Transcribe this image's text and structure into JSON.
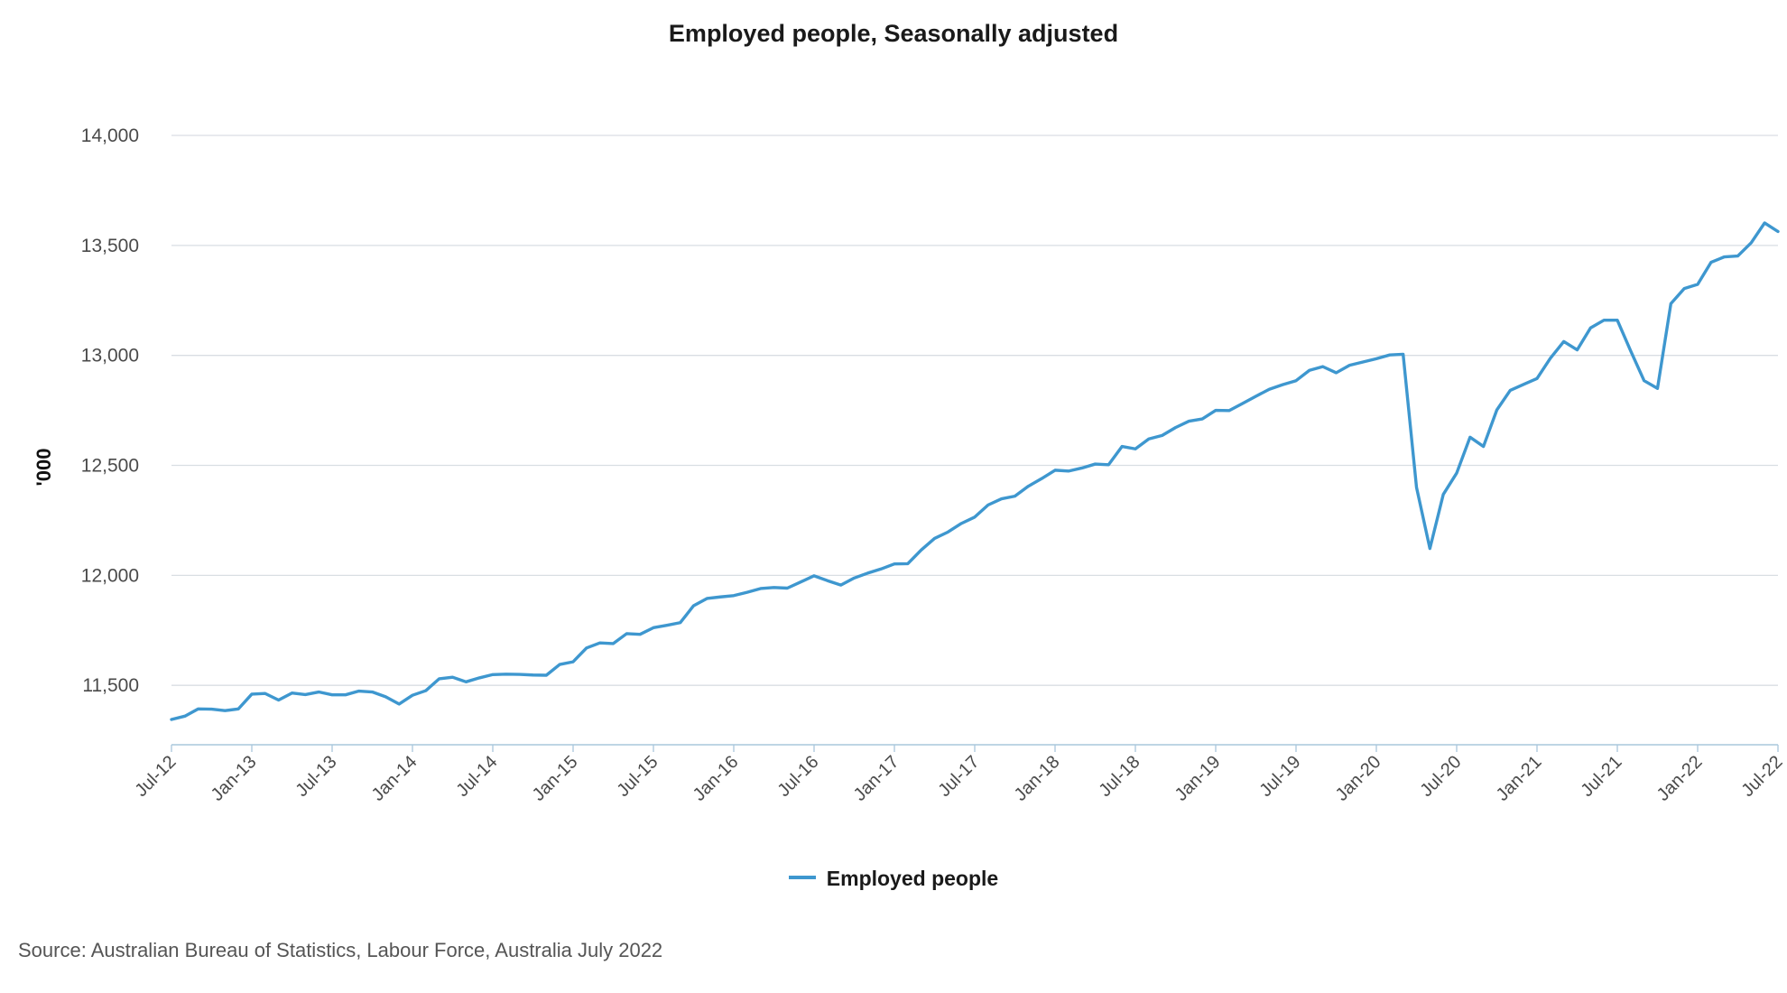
{
  "chart_data": {
    "type": "line",
    "title": "Employed people, Seasonally adjusted",
    "ylabel": "'000",
    "xlabel": "",
    "ylim": [
      11230,
      14000
    ],
    "yticks": [
      11500,
      12000,
      12500,
      13000,
      13500,
      14000
    ],
    "ytick_labels": [
      "11,500",
      "12,000",
      "12,500",
      "13,000",
      "13,500",
      "14,000"
    ],
    "xtick_labels": [
      "Jul-12",
      "Jan-13",
      "Jul-13",
      "Jan-14",
      "Jul-14",
      "Jan-15",
      "Jul-15",
      "Jan-16",
      "Jul-16",
      "Jan-17",
      "Jul-17",
      "Jan-18",
      "Jul-18",
      "Jan-19",
      "Jul-19",
      "Jan-20",
      "Jul-20",
      "Jan-21",
      "Jul-21",
      "Jan-22",
      "Jul-22"
    ],
    "x_start": "Jul-12",
    "x_end": "Jul-22",
    "grid": true,
    "legend_position": "bottom-center",
    "series": [
      {
        "name": "Employed people",
        "color": "#3e97cf",
        "values": [
          11345,
          11360,
          11393,
          11392,
          11385,
          11393,
          11460,
          11463,
          11433,
          11465,
          11458,
          11470,
          11457,
          11457,
          11474,
          11470,
          11448,
          11415,
          11455,
          11476,
          11530,
          11537,
          11516,
          11534,
          11549,
          11551,
          11550,
          11547,
          11546,
          11595,
          11607,
          11670,
          11693,
          11690,
          11735,
          11732,
          11762,
          11773,
          11785,
          11862,
          11895,
          11902,
          11908,
          11923,
          11940,
          11945,
          11942,
          11970,
          11998,
          11976,
          11956,
          11988,
          12010,
          12029,
          12052,
          12053,
          12115,
          12168,
          12197,
          12236,
          12265,
          12320,
          12348,
          12360,
          12405,
          12440,
          12478,
          12474,
          12488,
          12506,
          12503,
          12586,
          12575,
          12620,
          12636,
          12672,
          12701,
          12711,
          12750,
          12749,
          12781,
          12814,
          12846,
          12867,
          12885,
          12932,
          12949,
          12921,
          12955,
          12970,
          12985,
          13002,
          13005,
          12400,
          12122,
          12368,
          12465,
          12628,
          12586,
          12752,
          12841,
          12868,
          12895,
          12987,
          13063,
          13025,
          13125,
          13160,
          13160,
          13020,
          12885,
          12850,
          13235,
          13304,
          13323,
          13423,
          13448,
          13452,
          13512,
          13602,
          13563
        ]
      }
    ]
  },
  "legend": {
    "label": "Employed people"
  },
  "source": "Source: Australian Bureau of Statistics, Labour Force, Australia July 2022"
}
